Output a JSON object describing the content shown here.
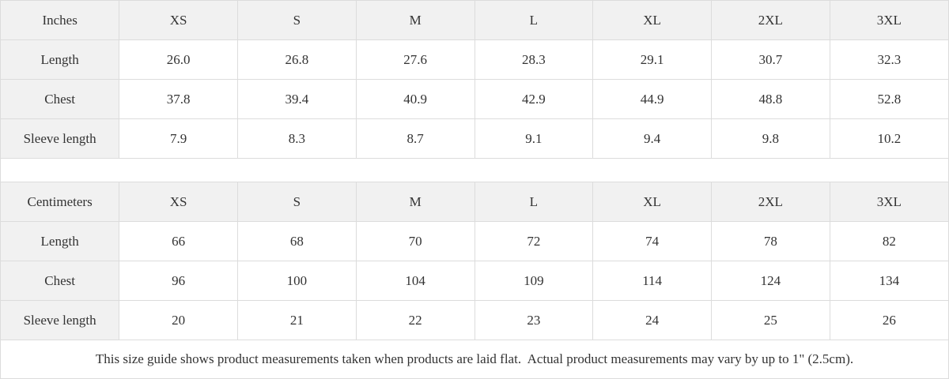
{
  "tables": [
    {
      "unit_label": "Inches",
      "sizes": [
        "XS",
        "S",
        "M",
        "L",
        "XL",
        "2XL",
        "3XL"
      ],
      "rows": [
        {
          "label": "Length",
          "values": [
            "26.0",
            "26.8",
            "27.6",
            "28.3",
            "29.1",
            "30.7",
            "32.3"
          ]
        },
        {
          "label": "Chest",
          "values": [
            "37.8",
            "39.4",
            "40.9",
            "42.9",
            "44.9",
            "48.8",
            "52.8"
          ]
        },
        {
          "label": "Sleeve length",
          "values": [
            "7.9",
            "8.3",
            "8.7",
            "9.1",
            "9.4",
            "9.8",
            "10.2"
          ]
        }
      ]
    },
    {
      "unit_label": "Centimeters",
      "sizes": [
        "XS",
        "S",
        "M",
        "L",
        "XL",
        "2XL",
        "3XL"
      ],
      "rows": [
        {
          "label": "Length",
          "values": [
            "66",
            "68",
            "70",
            "72",
            "74",
            "78",
            "82"
          ]
        },
        {
          "label": "Chest",
          "values": [
            "96",
            "100",
            "104",
            "109",
            "114",
            "124",
            "134"
          ]
        },
        {
          "label": "Sleeve length",
          "values": [
            "20",
            "21",
            "22",
            "23",
            "24",
            "25",
            "26"
          ]
        }
      ]
    }
  ],
  "footer": {
    "note": "This size guide shows product measurements taken when products are laid flat.  Actual product measurements may vary by up to 1\" (2.5cm)."
  },
  "colors": {
    "header_bg": "#f1f1f1",
    "border": "#dcdcdc",
    "text": "#333333",
    "cell_bg": "#ffffff"
  }
}
